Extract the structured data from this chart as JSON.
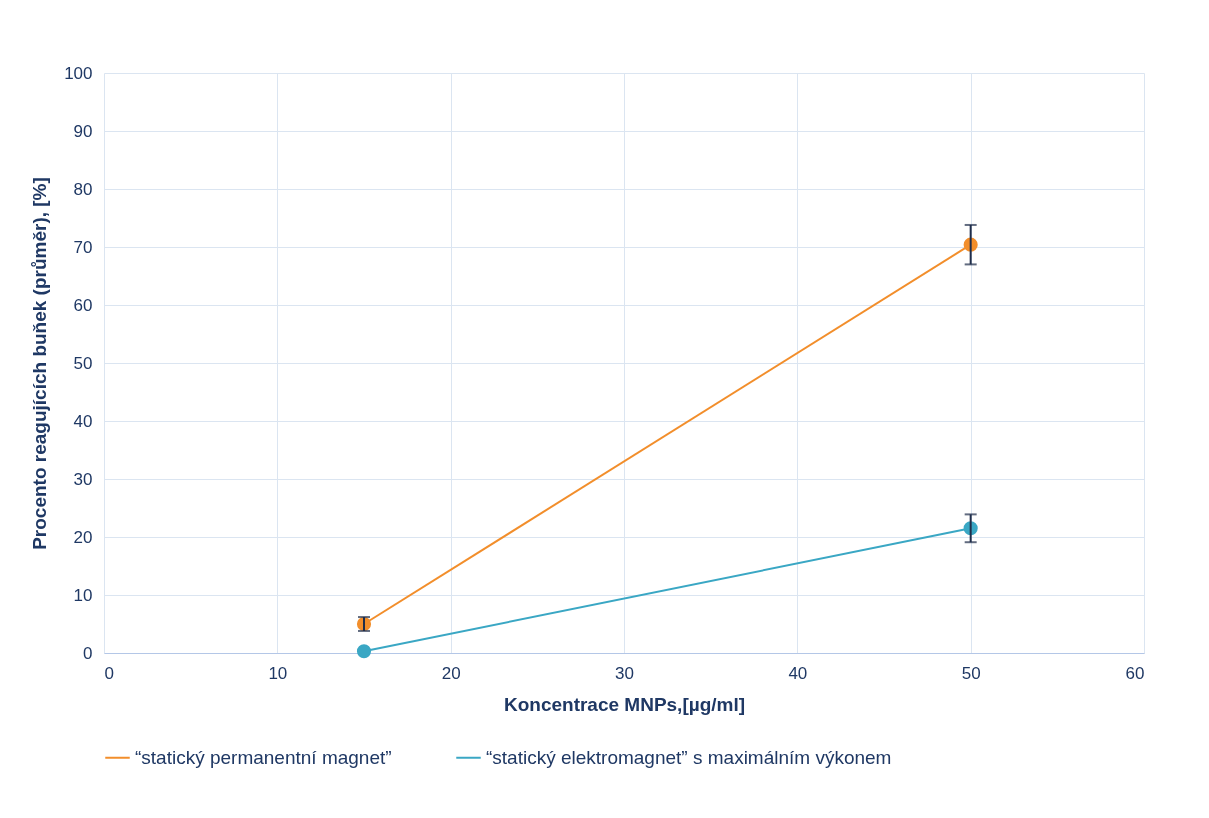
{
  "chart_data": {
    "type": "line",
    "xlabel": "Koncentrace MNPs,[µg/ml]",
    "ylabel": "Procento reagujících buňek (průměr), [%]",
    "x": [
      15,
      50
    ],
    "series": [
      {
        "name": "“statický permanentní magnet”",
        "color": "#f28e2b",
        "values": [
          5.0,
          70.4
        ],
        "errors": [
          1.2,
          3.4
        ]
      },
      {
        "name": "“statický elektromagnet” s maximálním výkonem",
        "color": "#3aa7c4",
        "values": [
          0.3,
          21.5
        ],
        "errors": [
          null,
          2.4
        ]
      }
    ],
    "xlim": [
      0,
      60
    ],
    "xticks": [
      0,
      10,
      20,
      30,
      40,
      50,
      60
    ],
    "ylim": [
      0,
      100
    ],
    "yticks": [
      0,
      10,
      20,
      30,
      40,
      50,
      60,
      70,
      80,
      90,
      100
    ],
    "grid": true,
    "legend": "bottom",
    "marker": "circle",
    "line_style": "solid"
  }
}
